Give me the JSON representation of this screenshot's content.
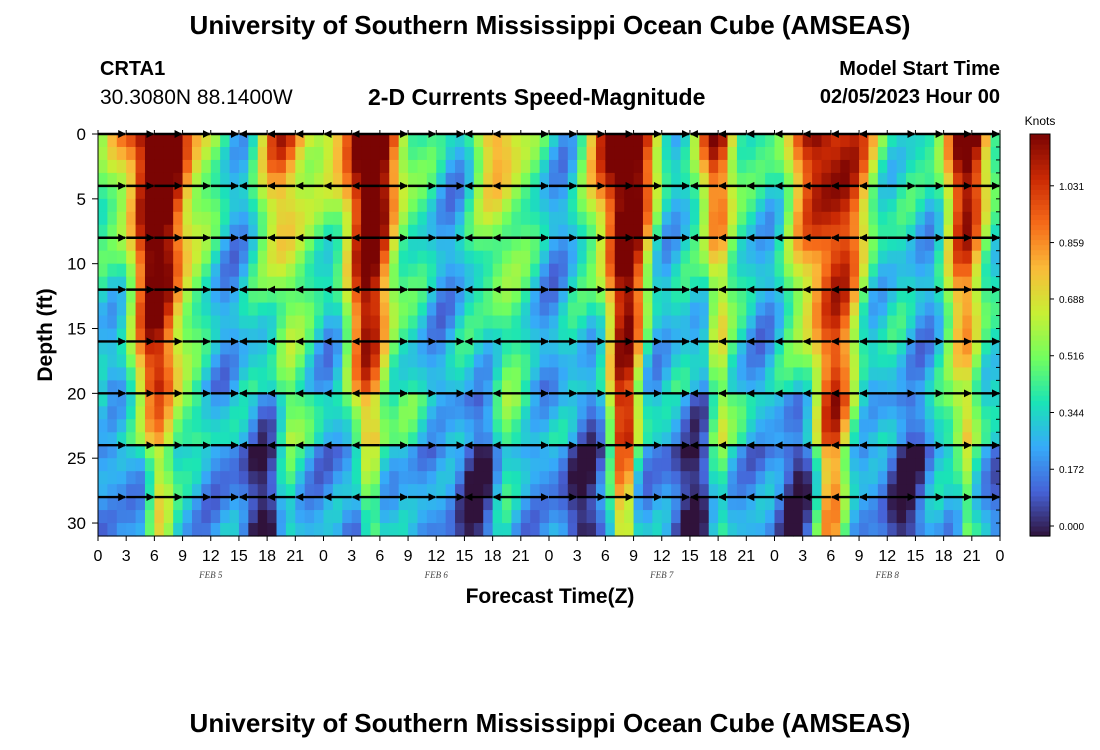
{
  "header": {
    "title": "University of Southern Mississippi Ocean Cube (AMSEAS)",
    "station_name": "CRTA1",
    "station_coords": "30.3080N  88.1400W",
    "subtitle": "2-D Currents Speed-Magnitude",
    "model_start_label": "Model Start Time",
    "model_start_value": "02/05/2023 Hour 00"
  },
  "footer": {
    "title": "University of Southern Mississippi Ocean Cube (AMSEAS)"
  },
  "chart_data": {
    "type": "heatmap",
    "title": "2-D Currents Speed-Magnitude",
    "xlabel": "Forecast Time(Z)",
    "ylabel": "Depth (ft)",
    "x_range_hours": [
      0,
      96
    ],
    "x_tick_step_hours": 3,
    "x_tick_labels": [
      "0",
      "3",
      "6",
      "9",
      "12",
      "15",
      "18",
      "21",
      "0",
      "3",
      "6",
      "9",
      "12",
      "15",
      "18",
      "21",
      "0",
      "3",
      "6",
      "9",
      "12",
      "15",
      "18",
      "21",
      "0",
      "3",
      "6",
      "9",
      "12",
      "15",
      "18",
      "21",
      "0"
    ],
    "day_labels": [
      {
        "text": "FEB 5",
        "hour": 12
      },
      {
        "text": "FEB 6",
        "hour": 36
      },
      {
        "text": "FEB 7",
        "hour": 60
      },
      {
        "text": "FEB 8",
        "hour": 84
      }
    ],
    "y_range_ft": [
      0,
      31
    ],
    "y_ticks": [
      0,
      5,
      10,
      15,
      20,
      25,
      30
    ],
    "colorbar": {
      "label": "Knots",
      "range": [
        0,
        1.2
      ],
      "ticks": [
        0.0,
        0.172,
        0.344,
        0.516,
        0.688,
        0.859,
        1.031
      ],
      "tick_labels": [
        "0.000",
        "0.172",
        "0.344",
        "0.516",
        "0.688",
        "0.859",
        "1.031"
      ],
      "colors": [
        "#30123b",
        "#4662d7",
        "#36aaf9",
        "#1ae4b6",
        "#72fe5e",
        "#c8ef34",
        "#faba39",
        "#f66b19",
        "#cb2a04",
        "#7a0403"
      ]
    },
    "vector_depths_ft": [
      0,
      4,
      8,
      12,
      16,
      20,
      24,
      28
    ],
    "vector_direction_by_hour": [
      {
        "hour_from": 0,
        "hour_to": 14,
        "direction": "east"
      },
      {
        "hour_from": 14,
        "hour_to": 30,
        "direction": "west"
      },
      {
        "hour_from": 30,
        "hour_to": 38,
        "direction": "east"
      },
      {
        "hour_from": 38,
        "hour_to": 46,
        "direction": "west"
      },
      {
        "hour_from": 46,
        "hour_to": 62,
        "direction": "east"
      },
      {
        "hour_from": 62,
        "hour_to": 84,
        "direction": "west"
      },
      {
        "hour_from": 84,
        "hour_to": 96,
        "direction": "east"
      }
    ],
    "speed_field_description": "Speed magnitude (knots) versus forecast hour and depth; high speeds (~1.0+ kt) near hours 3-10, 26-32, 53-59, 74-82; low speeds (~0-0.2 kt) near hours 1, 14-16, 22, 38, 45-47, 65-70, 88-90"
  }
}
